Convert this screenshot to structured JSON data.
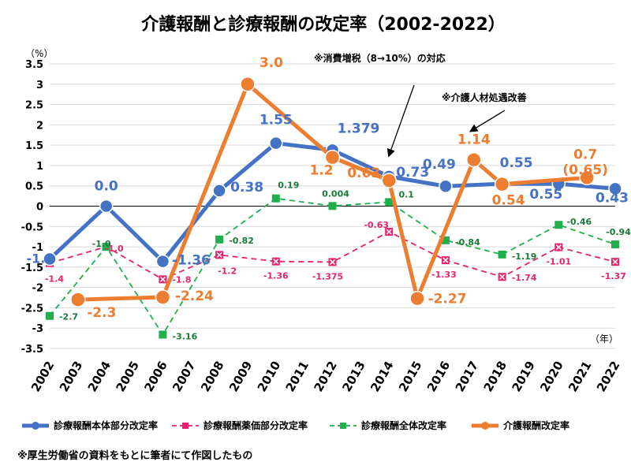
{
  "chart_data": {
    "type": "line",
    "title": "介護報酬と診療報酬の改定率（2002-2022）",
    "y_unit": "（%）",
    "x_unit": "（年）",
    "ylim": [
      -3.5,
      3.5
    ],
    "y_ticks": [
      "3.5",
      "3",
      "2.5",
      "2",
      "1.5",
      "1",
      "0.5",
      "0",
      "-0.5",
      "-1",
      "-1.5",
      "-2",
      "-2.5",
      "-3",
      "-3.5"
    ],
    "x": [
      2002,
      2003,
      2004,
      2005,
      2006,
      2007,
      2008,
      2009,
      2010,
      2011,
      2012,
      2013,
      2014,
      2015,
      2016,
      2017,
      2018,
      2019,
      2020,
      2021,
      2022
    ],
    "grid": true,
    "legend_position": "bottom",
    "series": [
      {
        "name": "診療報酬本体部分改定率",
        "color": "#4472C4",
        "points": [
          {
            "x": 2002,
            "y": -1.3,
            "label": "-1.3"
          },
          {
            "x": 2004,
            "y": 0.0,
            "label": "0.0"
          },
          {
            "x": 2006,
            "y": -1.36,
            "label": "-1.36"
          },
          {
            "x": 2008,
            "y": 0.38,
            "label": "0.38"
          },
          {
            "x": 2010,
            "y": 1.55,
            "label": "1.55"
          },
          {
            "x": 2012,
            "y": 1.379,
            "label": "1.379"
          },
          {
            "x": 2014,
            "y": 0.73,
            "label": "0.73"
          },
          {
            "x": 2016,
            "y": 0.49,
            "label": "0.49"
          },
          {
            "x": 2018,
            "y": 0.55,
            "label": "0.55"
          },
          {
            "x": 2020,
            "y": 0.55,
            "label": "0.55"
          },
          {
            "x": 2022,
            "y": 0.43,
            "label": "0.43"
          }
        ]
      },
      {
        "name": "診療報酬薬価部分改定率",
        "color": "#E8226E",
        "points": [
          {
            "x": 2002,
            "y": -1.4,
            "label": "-1.4"
          },
          {
            "x": 2004,
            "y": -1.0,
            "label": "-1.0"
          },
          {
            "x": 2006,
            "y": -1.8,
            "label": "-1.8"
          },
          {
            "x": 2008,
            "y": -1.2,
            "label": "-1.2"
          },
          {
            "x": 2010,
            "y": -1.36,
            "label": "-1.36"
          },
          {
            "x": 2012,
            "y": -1.375,
            "label": "-1.375"
          },
          {
            "x": 2014,
            "y": -0.63,
            "label": "-0.63"
          },
          {
            "x": 2016,
            "y": -1.33,
            "label": "-1.33"
          },
          {
            "x": 2018,
            "y": -1.74,
            "label": "-1.74"
          },
          {
            "x": 2020,
            "y": -1.01,
            "label": "-1.01"
          },
          {
            "x": 2022,
            "y": -1.37,
            "label": "-1.37"
          }
        ]
      },
      {
        "name": "診療報酬全体改定率",
        "color": "#1FAF4B",
        "points": [
          {
            "x": 2002,
            "y": -2.7,
            "label": "-2.7"
          },
          {
            "x": 2004,
            "y": -1.0,
            "label": "-1.0"
          },
          {
            "x": 2006,
            "y": -3.16,
            "label": "-3.16"
          },
          {
            "x": 2008,
            "y": -0.82,
            "label": "-0.82"
          },
          {
            "x": 2010,
            "y": 0.19,
            "label": "0.19"
          },
          {
            "x": 2012,
            "y": 0.004,
            "label": "0.004"
          },
          {
            "x": 2014,
            "y": 0.1,
            "label": "0.1"
          },
          {
            "x": 2016,
            "y": -0.84,
            "label": "-0.84"
          },
          {
            "x": 2018,
            "y": -1.19,
            "label": "-1.19"
          },
          {
            "x": 2020,
            "y": -0.46,
            "label": "-0.46"
          },
          {
            "x": 2022,
            "y": -0.94,
            "label": "-0.94"
          }
        ]
      },
      {
        "name": "介護報酬改定率",
        "color": "#ED7D31",
        "points": [
          {
            "x": 2003,
            "y": -2.3,
            "label": "-2.3"
          },
          {
            "x": 2006,
            "y": -2.24,
            "label": "-2.24"
          },
          {
            "x": 2009,
            "y": 3.0,
            "label": "3.0"
          },
          {
            "x": 2012,
            "y": 1.2,
            "label": "1.2"
          },
          {
            "x": 2014,
            "y": 0.63,
            "label": "0.63"
          },
          {
            "x": 2015,
            "y": -2.27,
            "label": "-2.27"
          },
          {
            "x": 2017,
            "y": 1.14,
            "label": "1.14"
          },
          {
            "x": 2018,
            "y": 0.54,
            "label": "0.54"
          },
          {
            "x": 2021,
            "y": 0.7,
            "label": "0.7\n(0.65)"
          }
        ]
      }
    ],
    "annotations": [
      {
        "text": "※消費増税（8→10%）の対応",
        "arrow_to": {
          "x": 2014.0,
          "y": 1.25
        }
      },
      {
        "text": "※介護人材処遇改善",
        "arrow_to": {
          "x": 2016.9,
          "y": 1.85
        }
      }
    ]
  },
  "footnote": "※厚生労働省の資料をもとに筆者にて作図したもの"
}
